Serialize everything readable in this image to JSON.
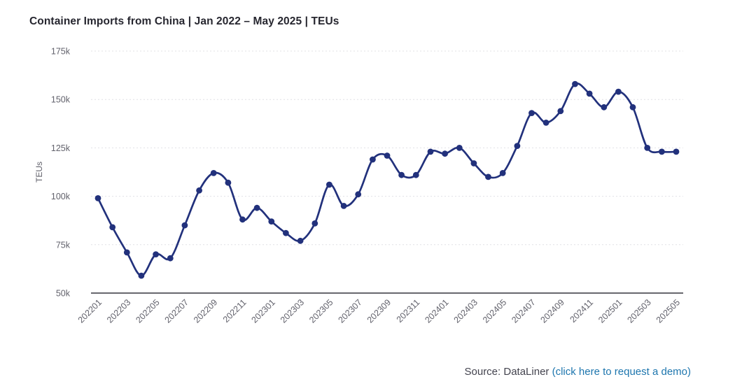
{
  "header": {
    "title": "Container Imports from China | Jan 2022 – May 2025 | TEUs"
  },
  "footer": {
    "source_prefix": "Source: DataLiner ",
    "link_text": "(click here to request a demo)"
  },
  "colors": {
    "line": "#22317c",
    "marker": "#22317c",
    "title_text": "#26262f",
    "axis_text": "#62626c",
    "grid_line": "#e1e1e6",
    "axis_line": "#35353d",
    "source_text": "#43434e",
    "link_blue": "#1e76ae",
    "background": "#ffffff"
  },
  "chart_data": {
    "type": "line",
    "title": "Container Imports from China | Jan 2022 – May 2025 | TEUs",
    "xlabel": "",
    "ylabel": "TEUs",
    "x": [
      "202201",
      "202202",
      "202203",
      "202204",
      "202205",
      "202206",
      "202207",
      "202208",
      "202209",
      "202210",
      "202211",
      "202212",
      "202301",
      "202302",
      "202303",
      "202304",
      "202305",
      "202306",
      "202307",
      "202308",
      "202309",
      "202310",
      "202311",
      "202312",
      "202401",
      "202402",
      "202403",
      "202404",
      "202405",
      "202406",
      "202407",
      "202408",
      "202409",
      "202410",
      "202411",
      "202412",
      "202501",
      "202502",
      "202503",
      "202504",
      "202505"
    ],
    "series": [
      {
        "name": "TEUs",
        "values": [
          99000,
          84000,
          71000,
          59000,
          70000,
          68000,
          85000,
          103000,
          112000,
          107000,
          88000,
          94000,
          87000,
          81000,
          77000,
          86000,
          106000,
          95000,
          101000,
          119000,
          121000,
          111000,
          111000,
          123000,
          122000,
          125000,
          117000,
          110000,
          112000,
          126000,
          143000,
          138000,
          144000,
          158000,
          153000,
          146000,
          154000,
          146000,
          125000,
          123000,
          123000
        ]
      }
    ],
    "ylim": [
      50000,
      175000
    ],
    "ytick_values": [
      50000,
      75000,
      100000,
      125000,
      150000,
      175000
    ],
    "ytick_labels": [
      "50k",
      "75k",
      "100k",
      "125k",
      "150k",
      "175k"
    ],
    "xtick_labels_shown": [
      "202201",
      "202203",
      "202205",
      "202207",
      "202209",
      "202211",
      "202301",
      "202303",
      "202305",
      "202307",
      "202309",
      "202311",
      "202401",
      "202403",
      "202405",
      "202407",
      "202409",
      "202411",
      "202501",
      "202503",
      "202505"
    ],
    "xtick_every": 2,
    "grid": "horizontal-dotted",
    "legend": "none",
    "marker": "circle",
    "line_style": "smooth"
  }
}
